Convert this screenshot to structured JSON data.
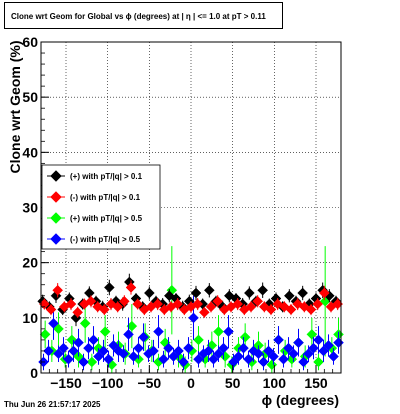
{
  "title": "Clone wrt Geom for Global vs ϕ (degrees) at |  η  | <= 1.0 at pT > 0.11",
  "footer": {
    "timestamp": "Thu Jun 26 21:57:17 2025"
  },
  "colors": {
    "black": "#000000",
    "red": "#ff0000",
    "green": "#00ff00",
    "blue": "#0000ff"
  },
  "chart_data": {
    "type": "scatter",
    "xlabel": "ϕ (degrees)",
    "ylabel": "Clone wrt Geom (%)",
    "xlim": [
      -180,
      180
    ],
    "ylim": [
      0,
      60
    ],
    "xticks": [
      -150,
      -100,
      -50,
      0,
      50,
      100,
      150
    ],
    "xtick_labels": [
      "−150",
      "−100",
      "−50",
      "0",
      "50",
      "100",
      "150"
    ],
    "yticks": [
      0,
      10,
      20,
      30,
      40,
      50,
      60
    ],
    "grid": true,
    "legend_position": "middle-left",
    "series": [
      {
        "name": "(+) with pT/|q| > 0.1",
        "color": "#000000",
        "points": [
          {
            "x": -178,
            "y": 13.0,
            "err": 1.2
          },
          {
            "x": -170,
            "y": 12.0,
            "err": 1.0
          },
          {
            "x": -162,
            "y": 14.0,
            "err": 1.3
          },
          {
            "x": -154,
            "y": 11.5,
            "err": 1.0
          },
          {
            "x": -146,
            "y": 13.5,
            "err": 1.1
          },
          {
            "x": -138,
            "y": 10.0,
            "err": 1.5
          },
          {
            "x": -130,
            "y": 12.5,
            "err": 1.0
          },
          {
            "x": -122,
            "y": 14.5,
            "err": 1.2
          },
          {
            "x": -114,
            "y": 13.0,
            "err": 1.0
          },
          {
            "x": -106,
            "y": 12.0,
            "err": 1.1
          },
          {
            "x": -98,
            "y": 15.5,
            "err": 1.4
          },
          {
            "x": -90,
            "y": 13.0,
            "err": 1.0
          },
          {
            "x": -82,
            "y": 12.5,
            "err": 1.2
          },
          {
            "x": -74,
            "y": 16.5,
            "err": 1.5
          },
          {
            "x": -66,
            "y": 13.5,
            "err": 1.0
          },
          {
            "x": -58,
            "y": 12.0,
            "err": 1.0
          },
          {
            "x": -50,
            "y": 14.5,
            "err": 1.2
          },
          {
            "x": -42,
            "y": 13.0,
            "err": 1.0
          },
          {
            "x": -34,
            "y": 12.5,
            "err": 1.1
          },
          {
            "x": -26,
            "y": 14.0,
            "err": 1.2
          },
          {
            "x": -18,
            "y": 13.5,
            "err": 1.0
          },
          {
            "x": -10,
            "y": 12.0,
            "err": 1.1
          },
          {
            "x": -2,
            "y": 13.0,
            "err": 1.2
          },
          {
            "x": 6,
            "y": 14.5,
            "err": 1.3
          },
          {
            "x": 14,
            "y": 12.5,
            "err": 1.0
          },
          {
            "x": 22,
            "y": 15.0,
            "err": 1.3
          },
          {
            "x": 30,
            "y": 13.0,
            "err": 1.0
          },
          {
            "x": 38,
            "y": 12.0,
            "err": 1.1
          },
          {
            "x": 46,
            "y": 14.0,
            "err": 1.2
          },
          {
            "x": 54,
            "y": 13.5,
            "err": 1.0
          },
          {
            "x": 62,
            "y": 12.5,
            "err": 1.1
          },
          {
            "x": 70,
            "y": 14.5,
            "err": 1.2
          },
          {
            "x": 78,
            "y": 13.0,
            "err": 1.0
          },
          {
            "x": 86,
            "y": 15.0,
            "err": 1.4
          },
          {
            "x": 94,
            "y": 12.5,
            "err": 1.0
          },
          {
            "x": 102,
            "y": 13.5,
            "err": 1.1
          },
          {
            "x": 110,
            "y": 12.0,
            "err": 1.0
          },
          {
            "x": 118,
            "y": 14.0,
            "err": 1.2
          },
          {
            "x": 126,
            "y": 13.0,
            "err": 1.0
          },
          {
            "x": 134,
            "y": 14.5,
            "err": 1.3
          },
          {
            "x": 142,
            "y": 12.5,
            "err": 1.0
          },
          {
            "x": 150,
            "y": 13.5,
            "err": 1.1
          },
          {
            "x": 158,
            "y": 15.0,
            "err": 1.4
          },
          {
            "x": 166,
            "y": 14.0,
            "err": 1.2
          },
          {
            "x": 174,
            "y": 13.0,
            "err": 1.0
          }
        ]
      },
      {
        "name": "(-) with pT/|q| > 0.1",
        "color": "#ff0000",
        "points": [
          {
            "x": -176,
            "y": 12.5,
            "err": 1.0
          },
          {
            "x": -168,
            "y": 11.5,
            "err": 1.0
          },
          {
            "x": -160,
            "y": 15.0,
            "err": 1.3
          },
          {
            "x": -152,
            "y": 12.0,
            "err": 1.0
          },
          {
            "x": -144,
            "y": 12.5,
            "err": 1.1
          },
          {
            "x": -136,
            "y": 11.0,
            "err": 1.0
          },
          {
            "x": -128,
            "y": 12.5,
            "err": 1.0
          },
          {
            "x": -120,
            "y": 13.0,
            "err": 1.1
          },
          {
            "x": -112,
            "y": 12.0,
            "err": 1.0
          },
          {
            "x": -104,
            "y": 11.5,
            "err": 1.0
          },
          {
            "x": -96,
            "y": 12.5,
            "err": 1.1
          },
          {
            "x": -88,
            "y": 12.0,
            "err": 1.0
          },
          {
            "x": -80,
            "y": 13.0,
            "err": 1.1
          },
          {
            "x": -72,
            "y": 15.5,
            "err": 1.3
          },
          {
            "x": -64,
            "y": 12.5,
            "err": 1.0
          },
          {
            "x": -56,
            "y": 11.5,
            "err": 1.0
          },
          {
            "x": -48,
            "y": 12.0,
            "err": 1.0
          },
          {
            "x": -40,
            "y": 12.5,
            "err": 1.1
          },
          {
            "x": -32,
            "y": 11.5,
            "err": 1.0
          },
          {
            "x": -24,
            "y": 12.0,
            "err": 1.0
          },
          {
            "x": -16,
            "y": 12.5,
            "err": 1.1
          },
          {
            "x": -8,
            "y": 11.5,
            "err": 1.0
          },
          {
            "x": 0,
            "y": 12.0,
            "err": 1.0
          },
          {
            "x": 8,
            "y": 12.5,
            "err": 1.1
          },
          {
            "x": 16,
            "y": 11.0,
            "err": 1.0
          },
          {
            "x": 24,
            "y": 12.0,
            "err": 1.0
          },
          {
            "x": 32,
            "y": 13.0,
            "err": 1.1
          },
          {
            "x": 40,
            "y": 11.5,
            "err": 1.0
          },
          {
            "x": 48,
            "y": 12.0,
            "err": 1.0
          },
          {
            "x": 56,
            "y": 12.5,
            "err": 1.1
          },
          {
            "x": 64,
            "y": 11.5,
            "err": 1.0
          },
          {
            "x": 72,
            "y": 12.0,
            "err": 1.0
          },
          {
            "x": 80,
            "y": 13.0,
            "err": 1.1
          },
          {
            "x": 88,
            "y": 12.0,
            "err": 1.0
          },
          {
            "x": 96,
            "y": 11.5,
            "err": 1.0
          },
          {
            "x": 104,
            "y": 12.5,
            "err": 1.1
          },
          {
            "x": 112,
            "y": 12.0,
            "err": 1.0
          },
          {
            "x": 120,
            "y": 11.5,
            "err": 1.0
          },
          {
            "x": 128,
            "y": 12.5,
            "err": 1.1
          },
          {
            "x": 136,
            "y": 12.0,
            "err": 1.0
          },
          {
            "x": 144,
            "y": 11.5,
            "err": 1.0
          },
          {
            "x": 152,
            "y": 12.5,
            "err": 1.1
          },
          {
            "x": 160,
            "y": 14.5,
            "err": 1.3
          },
          {
            "x": 168,
            "y": 12.0,
            "err": 1.0
          },
          {
            "x": 176,
            "y": 12.5,
            "err": 1.1
          }
        ]
      },
      {
        "name": "(+) with pT/|q| > 0.5",
        "color": "#00ff00",
        "points": [
          {
            "x": -175,
            "y": 7.0,
            "err": 2.5
          },
          {
            "x": -167,
            "y": 4.0,
            "err": 2.0
          },
          {
            "x": -159,
            "y": 8.0,
            "err": 3.0
          },
          {
            "x": -151,
            "y": 2.5,
            "err": 1.5
          },
          {
            "x": -143,
            "y": 6.0,
            "err": 2.5
          },
          {
            "x": -135,
            "y": 3.0,
            "err": 2.0
          },
          {
            "x": -127,
            "y": 9.0,
            "err": 3.5
          },
          {
            "x": -119,
            "y": 2.0,
            "err": 1.5
          },
          {
            "x": -111,
            "y": 4.5,
            "err": 2.0
          },
          {
            "x": -103,
            "y": 7.5,
            "err": 3.0
          },
          {
            "x": -95,
            "y": 1.5,
            "err": 1.5
          },
          {
            "x": -87,
            "y": 5.0,
            "err": 2.5
          },
          {
            "x": -79,
            "y": 3.5,
            "err": 2.0
          },
          {
            "x": -71,
            "y": 8.5,
            "err": 4.0
          },
          {
            "x": -63,
            "y": 2.5,
            "err": 1.5
          },
          {
            "x": -55,
            "y": 6.5,
            "err": 2.5
          },
          {
            "x": -47,
            "y": 4.0,
            "err": 2.0
          },
          {
            "x": -39,
            "y": 2.0,
            "err": 1.5
          },
          {
            "x": -31,
            "y": 5.5,
            "err": 2.5
          },
          {
            "x": -23,
            "y": 15.0,
            "err": 8.0
          },
          {
            "x": -15,
            "y": 3.0,
            "err": 2.0
          },
          {
            "x": -7,
            "y": 1.5,
            "err": 1.5
          },
          {
            "x": 1,
            "y": 4.0,
            "err": 2.0
          },
          {
            "x": 9,
            "y": 6.0,
            "err": 2.5
          },
          {
            "x": 17,
            "y": 2.5,
            "err": 1.5
          },
          {
            "x": 25,
            "y": 5.0,
            "err": 2.5
          },
          {
            "x": 33,
            "y": 7.5,
            "err": 3.0
          },
          {
            "x": 41,
            "y": 3.0,
            "err": 2.0
          },
          {
            "x": 49,
            "y": 1.5,
            "err": 1.5
          },
          {
            "x": 57,
            "y": 4.5,
            "err": 2.0
          },
          {
            "x": 65,
            "y": 6.5,
            "err": 2.5
          },
          {
            "x": 73,
            "y": 2.0,
            "err": 1.5
          },
          {
            "x": 81,
            "y": 5.0,
            "err": 2.5
          },
          {
            "x": 89,
            "y": 3.5,
            "err": 2.0
          },
          {
            "x": 97,
            "y": 1.5,
            "err": 1.5
          },
          {
            "x": 105,
            "y": 6.0,
            "err": 2.5
          },
          {
            "x": 113,
            "y": 4.0,
            "err": 2.0
          },
          {
            "x": 121,
            "y": 2.5,
            "err": 1.5
          },
          {
            "x": 129,
            "y": 5.5,
            "err": 2.5
          },
          {
            "x": 137,
            "y": 3.0,
            "err": 2.0
          },
          {
            "x": 145,
            "y": 7.0,
            "err": 3.0
          },
          {
            "x": 153,
            "y": 2.0,
            "err": 1.5
          },
          {
            "x": 161,
            "y": 13.0,
            "err": 10.0
          },
          {
            "x": 169,
            "y": 4.5,
            "err": 2.0
          },
          {
            "x": 177,
            "y": 7.0,
            "err": 3.0
          }
        ]
      },
      {
        "name": "(-) with pT/|q| > 0.5",
        "color": "#0000ff",
        "points": [
          {
            "x": -177,
            "y": 2.0,
            "err": 1.5
          },
          {
            "x": -171,
            "y": 4.0,
            "err": 2.0
          },
          {
            "x": -165,
            "y": 9.0,
            "err": 3.0
          },
          {
            "x": -159,
            "y": 3.5,
            "err": 1.5
          },
          {
            "x": -153,
            "y": 4.5,
            "err": 2.0
          },
          {
            "x": -147,
            "y": 2.5,
            "err": 1.5
          },
          {
            "x": -141,
            "y": 4.0,
            "err": 2.0
          },
          {
            "x": -135,
            "y": 5.5,
            "err": 2.5
          },
          {
            "x": -129,
            "y": 2.0,
            "err": 1.5
          },
          {
            "x": -123,
            "y": 4.5,
            "err": 2.0
          },
          {
            "x": -117,
            "y": 6.0,
            "err": 2.5
          },
          {
            "x": -111,
            "y": 3.0,
            "err": 1.5
          },
          {
            "x": -105,
            "y": 4.0,
            "err": 2.0
          },
          {
            "x": -99,
            "y": 2.5,
            "err": 1.5
          },
          {
            "x": -93,
            "y": 5.0,
            "err": 2.0
          },
          {
            "x": -87,
            "y": 4.0,
            "err": 2.0
          },
          {
            "x": -81,
            "y": 3.5,
            "err": 1.5
          },
          {
            "x": -75,
            "y": 7.0,
            "err": 3.0
          },
          {
            "x": -69,
            "y": 3.0,
            "err": 1.5
          },
          {
            "x": -63,
            "y": 4.5,
            "err": 2.0
          },
          {
            "x": -57,
            "y": 6.5,
            "err": 2.5
          },
          {
            "x": -51,
            "y": 3.5,
            "err": 1.5
          },
          {
            "x": -45,
            "y": 4.0,
            "err": 2.0
          },
          {
            "x": -39,
            "y": 7.5,
            "err": 3.0
          },
          {
            "x": -33,
            "y": 2.5,
            "err": 1.5
          },
          {
            "x": -27,
            "y": 4.5,
            "err": 2.0
          },
          {
            "x": -21,
            "y": 3.0,
            "err": 1.5
          },
          {
            "x": -15,
            "y": 4.0,
            "err": 2.0
          },
          {
            "x": -9,
            "y": 2.0,
            "err": 1.5
          },
          {
            "x": -3,
            "y": 4.5,
            "err": 2.0
          },
          {
            "x": 3,
            "y": 10.0,
            "err": 4.0
          },
          {
            "x": 9,
            "y": 2.5,
            "err": 1.5
          },
          {
            "x": 15,
            "y": 3.5,
            "err": 1.5
          },
          {
            "x": 21,
            "y": 4.0,
            "err": 2.0
          },
          {
            "x": 27,
            "y": 2.5,
            "err": 1.5
          },
          {
            "x": 33,
            "y": 3.5,
            "err": 1.5
          },
          {
            "x": 39,
            "y": 4.5,
            "err": 2.0
          },
          {
            "x": 45,
            "y": 7.5,
            "err": 3.0
          },
          {
            "x": 51,
            "y": 2.0,
            "err": 1.5
          },
          {
            "x": 57,
            "y": 3.0,
            "err": 1.5
          },
          {
            "x": 63,
            "y": 4.5,
            "err": 2.0
          },
          {
            "x": 69,
            "y": 2.5,
            "err": 1.5
          },
          {
            "x": 75,
            "y": 4.0,
            "err": 2.0
          },
          {
            "x": 81,
            "y": 3.5,
            "err": 1.5
          },
          {
            "x": 87,
            "y": 2.0,
            "err": 1.5
          },
          {
            "x": 93,
            "y": 4.0,
            "err": 2.0
          },
          {
            "x": 99,
            "y": 3.0,
            "err": 1.5
          },
          {
            "x": 105,
            "y": 6.0,
            "err": 2.5
          },
          {
            "x": 111,
            "y": 2.5,
            "err": 1.5
          },
          {
            "x": 117,
            "y": 4.5,
            "err": 2.0
          },
          {
            "x": 123,
            "y": 3.5,
            "err": 1.5
          },
          {
            "x": 129,
            "y": 5.5,
            "err": 2.5
          },
          {
            "x": 135,
            "y": 2.0,
            "err": 1.5
          },
          {
            "x": 141,
            "y": 3.5,
            "err": 1.5
          },
          {
            "x": 147,
            "y": 4.5,
            "err": 2.0
          },
          {
            "x": 153,
            "y": 6.0,
            "err": 2.5
          },
          {
            "x": 159,
            "y": 4.0,
            "err": 2.0
          },
          {
            "x": 165,
            "y": 5.0,
            "err": 2.0
          },
          {
            "x": 171,
            "y": 3.0,
            "err": 1.5
          },
          {
            "x": 177,
            "y": 5.5,
            "err": 2.0
          }
        ]
      }
    ]
  }
}
